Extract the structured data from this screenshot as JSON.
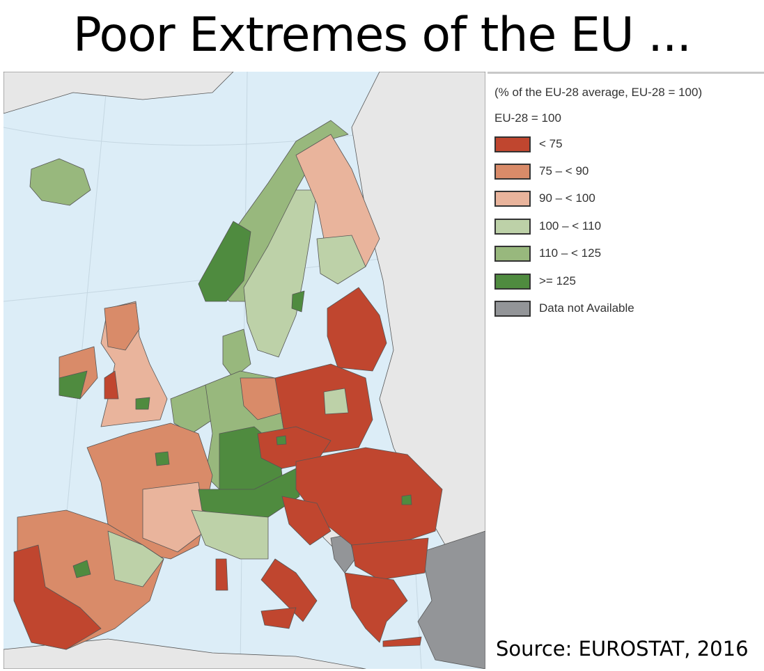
{
  "title": "Poor Extremes of the EU ...",
  "legend": {
    "subtitle": "(% of the EU-28 average, EU-28 = 100)",
    "base": "EU-28 = 100",
    "items": [
      {
        "label": "< 75",
        "color": "#c0462f"
      },
      {
        "label": "75 – < 90",
        "color": "#d98b69"
      },
      {
        "label": "90 – < 100",
        "color": "#e9b49c"
      },
      {
        "label": "100 – < 110",
        "color": "#bdd1a8"
      },
      {
        "label": "110 – < 125",
        "color": "#98b87d"
      },
      {
        "label": ">= 125",
        "color": "#4f8b3f"
      },
      {
        "label": "Data not Available",
        "color": "#939598"
      }
    ]
  },
  "colors": {
    "sea": "#dcedf7",
    "non_eu_land": "#e7e7e7"
  },
  "source": "Source: EUROSTAT, 2016"
}
